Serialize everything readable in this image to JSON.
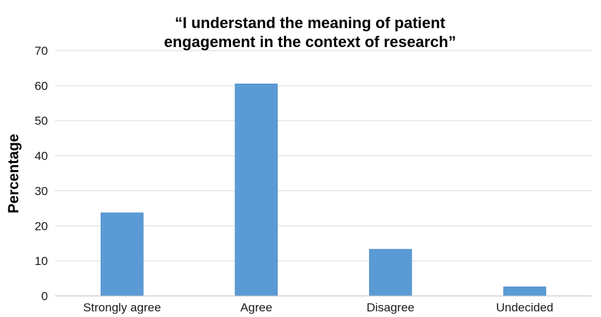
{
  "chart_data": {
    "type": "bar",
    "title_lines": [
      "“I understand the meaning of patient",
      "engagement in the context of research”"
    ],
    "xlabel": "",
    "ylabel": "Percentage",
    "categories": [
      "Strongly agree",
      "Agree",
      "Disagree",
      "Undecided"
    ],
    "values": [
      23.7,
      60.5,
      13.3,
      2.6
    ],
    "ylim": [
      0,
      70
    ],
    "yticks": [
      0,
      10,
      20,
      30,
      40,
      50,
      60,
      70
    ],
    "grid": true,
    "legend": "none",
    "colors": {
      "bar": "#5b9bd5",
      "bar_edge": "#4a8ac6",
      "grid": "#d9d9d9",
      "axis": "#bfbfbf"
    }
  }
}
